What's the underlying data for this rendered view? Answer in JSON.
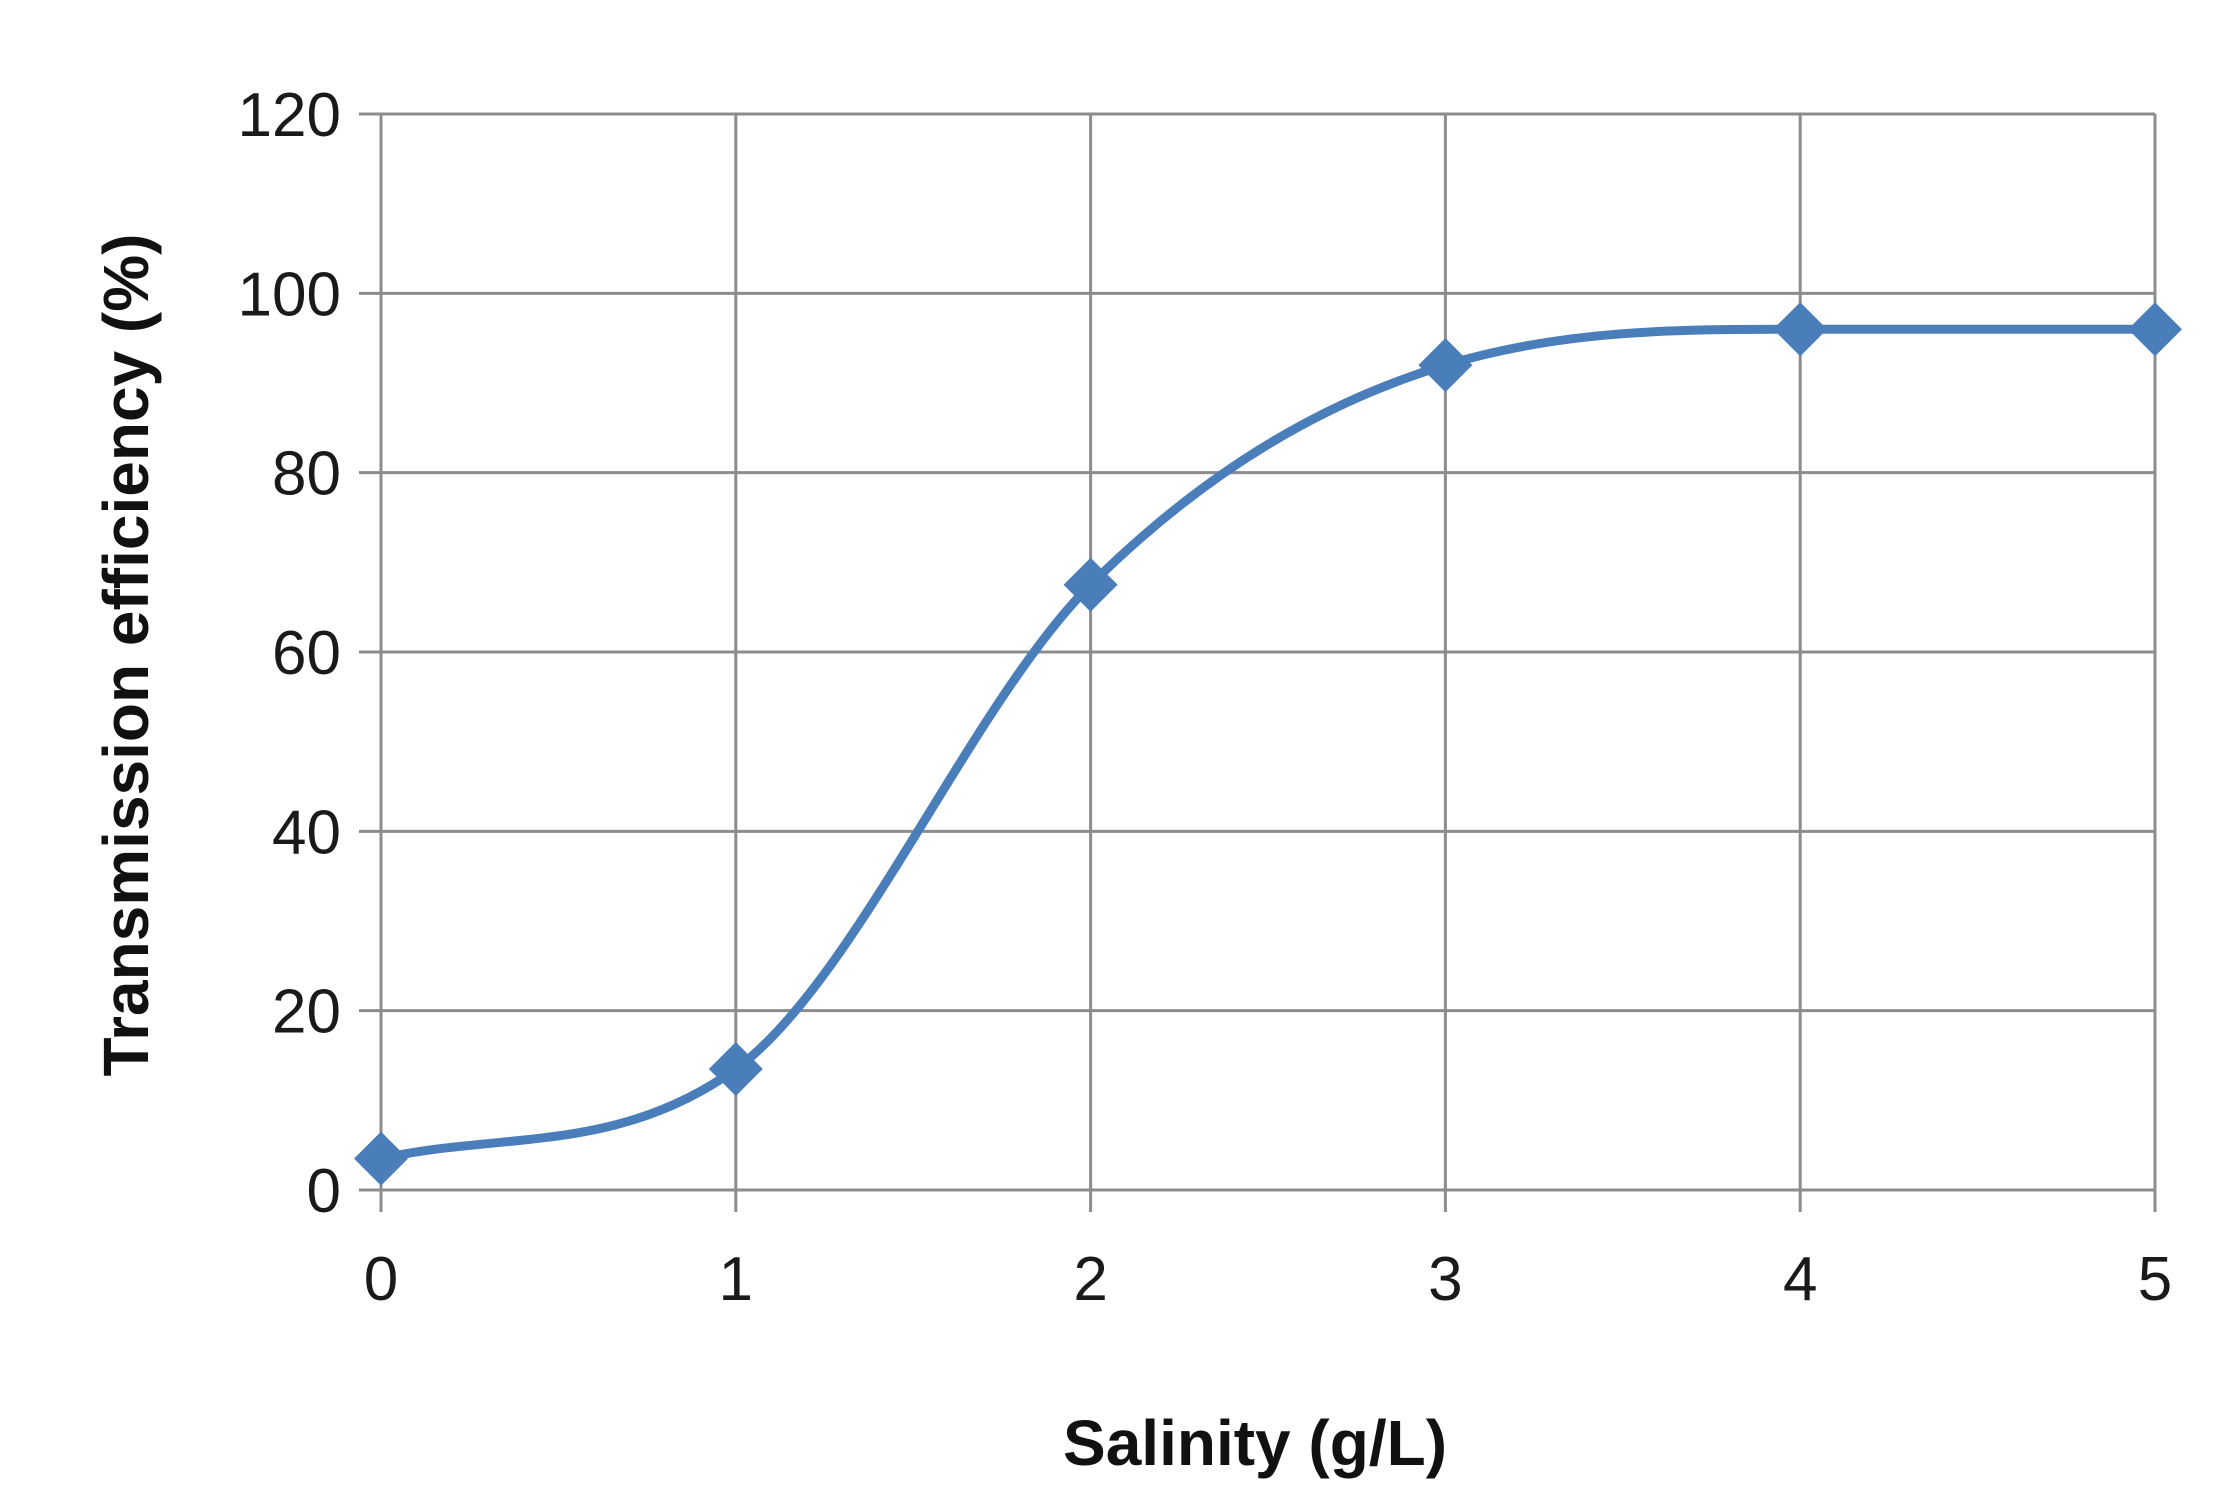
{
  "chart_data": {
    "type": "line",
    "smooth": true,
    "x": [
      0,
      1,
      2,
      3,
      4,
      5
    ],
    "series": [
      {
        "values": [
          3.5,
          13.5,
          67.5,
          92,
          96,
          96
        ],
        "color": "#4A7EBB",
        "marker": "diamond"
      }
    ],
    "xlabel": "Salinity (g/L)",
    "ylabel": "Transmission efficiency (%)",
    "xlim": [
      0,
      5
    ],
    "ylim": [
      0,
      120
    ],
    "xticks": [
      "0",
      "1",
      "2",
      "3",
      "4",
      "5"
    ],
    "yticks": [
      "0",
      "20",
      "40",
      "60",
      "80",
      "100",
      "120"
    ],
    "grid": true,
    "gridColor": "#8C8C8C",
    "legend": "none"
  }
}
